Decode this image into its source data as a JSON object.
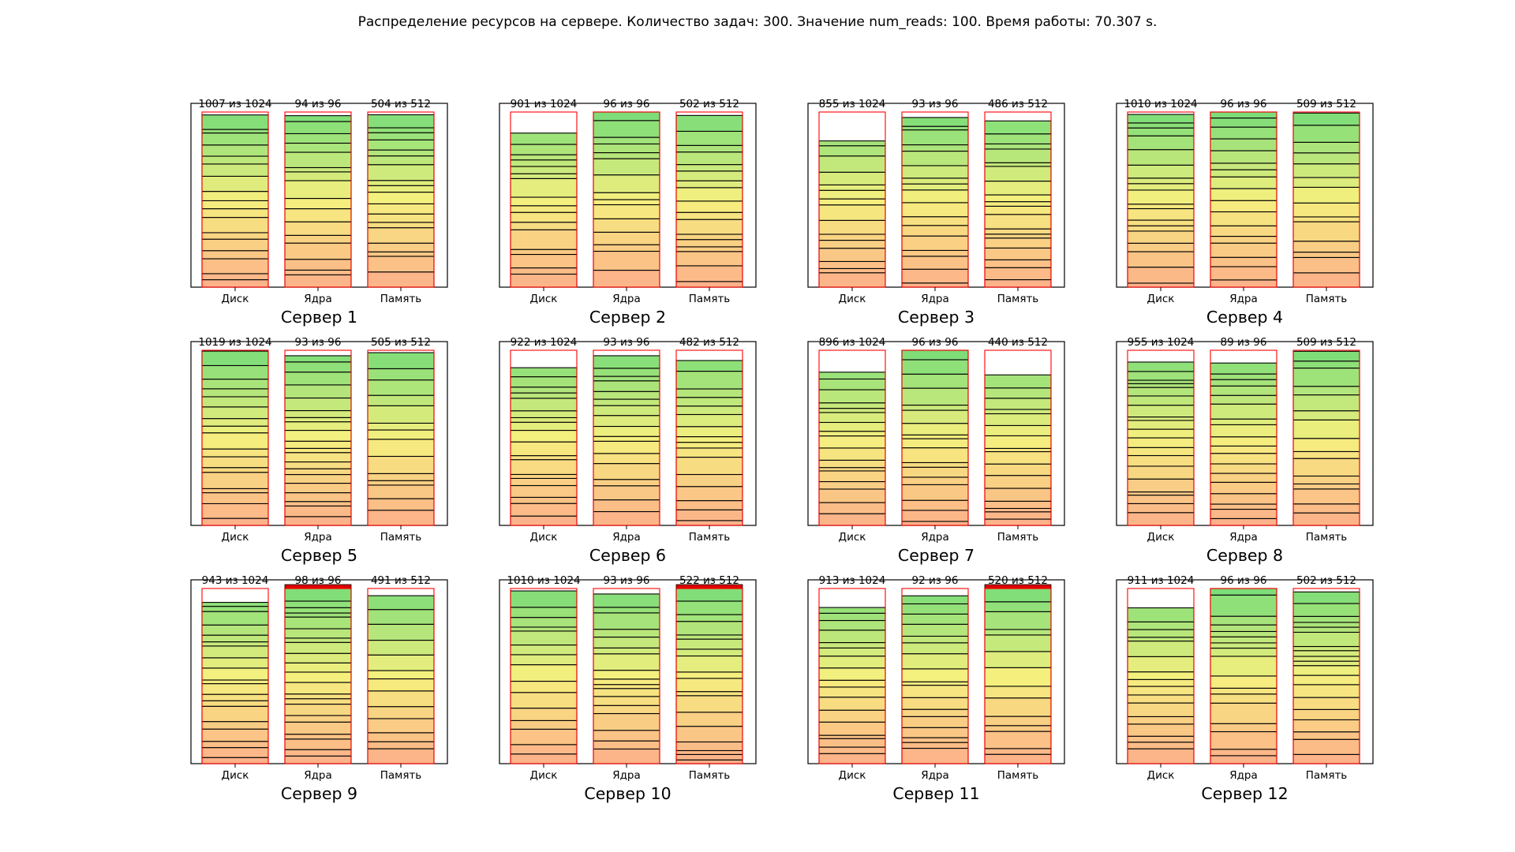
{
  "figure_title": "Распределение ресурсов на сервере. Количество задач: 300. Значение num_reads: 100. Время работы: 70.307 s.",
  "colors": {
    "gradient_bottom": "#fdb08a",
    "gradient_mid": "#f5f07e",
    "gradient_top": "#78dc78",
    "capacity_outline": "#ff0000",
    "overflow": "#e00000",
    "segment_border": "#000000"
  },
  "chart_data": [
    {
      "type": "stacked-bar",
      "title": "Сервер 1",
      "categories": [
        "Диск",
        "Ядра",
        "Память"
      ],
      "used": [
        1007,
        94,
        504
      ],
      "capacity": [
        1024,
        96,
        512
      ],
      "labels": [
        "1007 из 1024",
        "94 из 96",
        "504 из 512"
      ],
      "segments": [
        17,
        16,
        18
      ]
    },
    {
      "type": "stacked-bar",
      "title": "Сервер 2",
      "categories": [
        "Диск",
        "Ядра",
        "Память"
      ],
      "used": [
        901,
        96,
        502
      ],
      "capacity": [
        1024,
        96,
        512
      ],
      "labels": [
        "901 из 1024",
        "96 из 96",
        "502 из 512"
      ],
      "segments": [
        16,
        15,
        17
      ]
    },
    {
      "type": "stacked-bar",
      "title": "Сервер 3",
      "categories": [
        "Диск",
        "Ядра",
        "Память"
      ],
      "used": [
        855,
        93,
        486
      ],
      "capacity": [
        1024,
        96,
        512
      ],
      "labels": [
        "855 из 1024",
        "93 из 96",
        "486 из 512"
      ],
      "segments": [
        15,
        17,
        18
      ]
    },
    {
      "type": "stacked-bar",
      "title": "Сервер 4",
      "categories": [
        "Диск",
        "Ядра",
        "Память"
      ],
      "used": [
        1010,
        96,
        509
      ],
      "capacity": [
        1024,
        96,
        512
      ],
      "labels": [
        "1010 из 1024",
        "96 из 96",
        "509 из 512"
      ],
      "segments": [
        18,
        17,
        14
      ]
    },
    {
      "type": "stacked-bar",
      "title": "Сервер 5",
      "categories": [
        "Диск",
        "Ядра",
        "Память"
      ],
      "used": [
        1019,
        93,
        505
      ],
      "capacity": [
        1024,
        96,
        512
      ],
      "labels": [
        "1019 из 1024",
        "93 из 96",
        "505 из 512"
      ],
      "segments": [
        17,
        20,
        14
      ]
    },
    {
      "type": "stacked-bar",
      "title": "Сервер 6",
      "categories": [
        "Диск",
        "Ядра",
        "Память"
      ],
      "used": [
        922,
        93,
        482
      ],
      "capacity": [
        1024,
        96,
        512
      ],
      "labels": [
        "922 из 1024",
        "93 из 96",
        "482 из 512"
      ],
      "segments": [
        18,
        17,
        16
      ]
    },
    {
      "type": "stacked-bar",
      "title": "Сервер 7",
      "categories": [
        "Диск",
        "Ядра",
        "Память"
      ],
      "used": [
        896,
        96,
        440
      ],
      "capacity": [
        1024,
        96,
        512
      ],
      "labels": [
        "896 из 1024",
        "96 из 96",
        "440 из 512"
      ],
      "segments": [
        17,
        17,
        16
      ]
    },
    {
      "type": "stacked-bar",
      "title": "Сервер 8",
      "categories": [
        "Диск",
        "Ядра",
        "Память"
      ],
      "used": [
        955,
        89,
        509
      ],
      "capacity": [
        1024,
        96,
        512
      ],
      "labels": [
        "955 из 1024",
        "89 из 96",
        "509 из 512"
      ],
      "segments": [
        19,
        18,
        15
      ]
    },
    {
      "type": "stacked-bar",
      "title": "Сервер 9",
      "categories": [
        "Диск",
        "Ядра",
        "Память"
      ],
      "used": [
        943,
        98,
        491
      ],
      "capacity": [
        1024,
        96,
        512
      ],
      "labels": [
        "943 из 1024",
        "98 из 96",
        "491 из 512"
      ],
      "segments": [
        19,
        21,
        13
      ]
    },
    {
      "type": "stacked-bar",
      "title": "Сервер 10",
      "categories": [
        "Диск",
        "Ядра",
        "Память"
      ],
      "used": [
        1010,
        93,
        522
      ],
      "capacity": [
        1024,
        96,
        512
      ],
      "labels": [
        "1010 из 1024",
        "93 из 96",
        "522 из 512"
      ],
      "segments": [
        15,
        17,
        18
      ]
    },
    {
      "type": "stacked-bar",
      "title": "Сервер 11",
      "categories": [
        "Диск",
        "Ядра",
        "Память"
      ],
      "used": [
        913,
        92,
        520
      ],
      "capacity": [
        1024,
        96,
        512
      ],
      "labels": [
        "913 из 1024",
        "92 из 96",
        "520 из 512"
      ],
      "segments": [
        17,
        17,
        14
      ]
    },
    {
      "type": "stacked-bar",
      "title": "Сервер 12",
      "categories": [
        "Диск",
        "Ядра",
        "Память"
      ],
      "used": [
        911,
        96,
        502
      ],
      "capacity": [
        1024,
        96,
        512
      ],
      "labels": [
        "911 из 1024",
        "96 из 96",
        "502 из 512"
      ],
      "segments": [
        16,
        17,
        19
      ]
    }
  ]
}
